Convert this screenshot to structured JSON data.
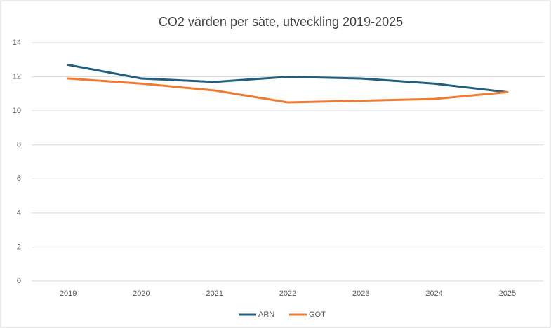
{
  "chart_data": {
    "type": "line",
    "title": "CO2 värden per säte, utveckling 2019-2025",
    "categories": [
      "2019",
      "2020",
      "2021",
      "2022",
      "2023",
      "2024",
      "2025"
    ],
    "series": [
      {
        "name": "ARN",
        "color": "#215f7e",
        "values": [
          12.7,
          11.9,
          11.7,
          12.0,
          11.9,
          11.6,
          11.1
        ]
      },
      {
        "name": "GOT",
        "color": "#f07a2e",
        "values": [
          11.9,
          11.6,
          11.2,
          10.5,
          10.6,
          10.7,
          11.1
        ]
      }
    ],
    "ylim": [
      0,
      14
    ],
    "yticks": [
      0,
      2,
      4,
      6,
      8,
      10,
      12,
      14
    ],
    "grid": true,
    "legend": "bottom"
  }
}
